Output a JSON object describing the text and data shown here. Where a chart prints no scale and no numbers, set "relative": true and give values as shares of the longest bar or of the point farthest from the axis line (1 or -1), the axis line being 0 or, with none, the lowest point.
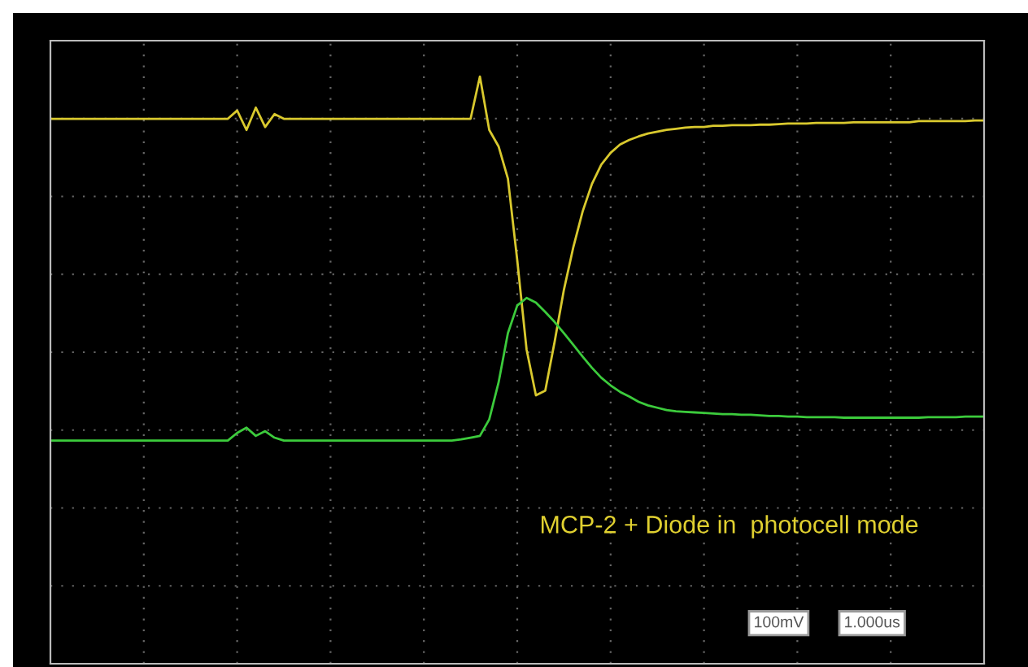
{
  "chart_data": {
    "type": "line",
    "relative": true,
    "grid": true,
    "marker": "none",
    "line_style": "solid",
    "categories": [
      null,
      null,
      null,
      null,
      null,
      null,
      null,
      null,
      null,
      null,
      null,
      null,
      null,
      null,
      null,
      null,
      null,
      null,
      null,
      null,
      null,
      null,
      null,
      null,
      null,
      null,
      null,
      null,
      null,
      null,
      null,
      null,
      null,
      null,
      null,
      null,
      null,
      null,
      null,
      null,
      null,
      null,
      null,
      null,
      null,
      null,
      null,
      null,
      null,
      null,
      null,
      null,
      null,
      null,
      null,
      null,
      null,
      null,
      null,
      null,
      null,
      null,
      null,
      null,
      null,
      null,
      null,
      null,
      null,
      null,
      null,
      null,
      null,
      null,
      null,
      null,
      null,
      null,
      null,
      null,
      null,
      null,
      null,
      null,
      null,
      null,
      null,
      null,
      null,
      null,
      null,
      null,
      null,
      null,
      null,
      null,
      null,
      null,
      null,
      null,
      null
    ],
    "series": [
      {
        "color": "#d9c92e",
        "values": [
          0.928,
          0.928,
          0.928,
          0.928,
          0.928,
          0.928,
          0.928,
          0.928,
          0.928,
          0.928,
          0.928,
          0.928,
          0.928,
          0.928,
          0.928,
          0.928,
          0.928,
          0.928,
          0.928,
          0.928,
          0.942,
          0.909,
          0.947,
          0.914,
          0.936,
          0.928,
          0.928,
          0.928,
          0.928,
          0.928,
          0.928,
          0.928,
          0.928,
          0.928,
          0.928,
          0.928,
          0.928,
          0.928,
          0.928,
          0.928,
          0.928,
          0.928,
          0.928,
          0.928,
          0.928,
          0.928,
          1,
          0.909,
          0.881,
          0.826,
          0.687,
          0.535,
          0.457,
          0.465,
          0.548,
          0.637,
          0.709,
          0.77,
          0.817,
          0.85,
          0.87,
          0.884,
          0.892,
          0.898,
          0.903,
          0.906,
          0.909,
          0.911,
          0.913,
          0.914,
          0.914,
          0.916,
          0.916,
          0.917,
          0.917,
          0.917,
          0.918,
          0.918,
          0.919,
          0.92,
          0.92,
          0.92,
          0.921,
          0.921,
          0.921,
          0.921,
          0.922,
          0.922,
          0.922,
          0.922,
          0.922,
          0.922,
          0.922,
          0.924,
          0.924,
          0.924,
          0.924,
          0.924,
          0.924,
          0.925,
          0.925
        ]
      },
      {
        "color": "#3ccb3c",
        "values": [
          0.38,
          0.38,
          0.38,
          0.38,
          0.38,
          0.38,
          0.38,
          0.38,
          0.38,
          0.38,
          0.38,
          0.38,
          0.38,
          0.38,
          0.38,
          0.38,
          0.38,
          0.38,
          0.38,
          0.38,
          0.393,
          0.402,
          0.388,
          0.396,
          0.385,
          0.38,
          0.38,
          0.38,
          0.38,
          0.38,
          0.38,
          0.38,
          0.38,
          0.38,
          0.38,
          0.38,
          0.38,
          0.38,
          0.38,
          0.38,
          0.38,
          0.38,
          0.38,
          0.38,
          0.382,
          0.385,
          0.388,
          0.416,
          0.479,
          0.563,
          0.61,
          0.623,
          0.615,
          0.599,
          0.582,
          0.563,
          0.543,
          0.523,
          0.504,
          0.487,
          0.474,
          0.463,
          0.455,
          0.446,
          0.44,
          0.436,
          0.432,
          0.43,
          0.429,
          0.428,
          0.427,
          0.426,
          0.425,
          0.425,
          0.424,
          0.424,
          0.423,
          0.422,
          0.422,
          0.421,
          0.421,
          0.42,
          0.42,
          0.42,
          0.42,
          0.419,
          0.419,
          0.419,
          0.419,
          0.419,
          0.419,
          0.419,
          0.419,
          0.419,
          0.42,
          0.42,
          0.42,
          0.42,
          0.421,
          0.421,
          0.421
        ]
      }
    ],
    "annotations": [
      "MCP-2 + Diode in  photocell mode",
      "100mV",
      "1.000us"
    ]
  }
}
